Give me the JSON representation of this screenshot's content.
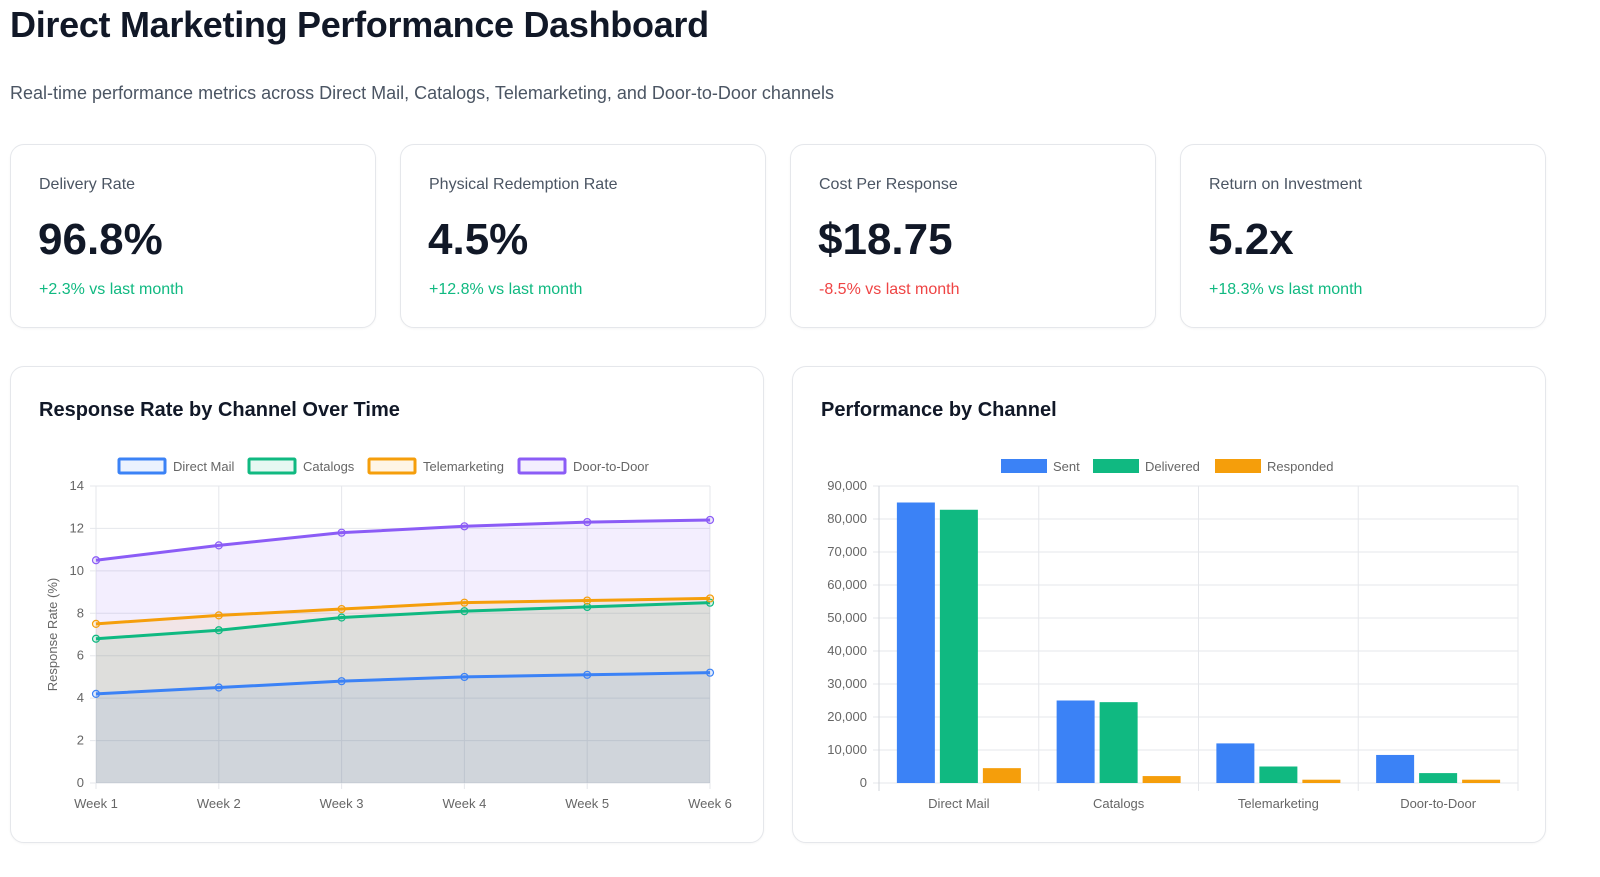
{
  "header": {
    "title": "Direct Marketing Performance Dashboard",
    "subtitle": "Real-time performance metrics across Direct Mail, Catalogs, Telemarketing, and Door-to-Door channels"
  },
  "kpis": [
    {
      "label": "Delivery Rate",
      "value": "96.8%",
      "change": "+2.3% vs last month",
      "trend": "positive"
    },
    {
      "label": "Physical Redemption Rate",
      "value": "4.5%",
      "change": "+12.8% vs last month",
      "trend": "positive"
    },
    {
      "label": "Cost Per Response",
      "value": "$18.75",
      "change": "-8.5% vs last month",
      "trend": "negative"
    },
    {
      "label": "Return on Investment",
      "value": "5.2x",
      "change": "+18.3% vs last month",
      "trend": "positive"
    }
  ],
  "colors": {
    "positive": "#10b981",
    "negative": "#ef4444",
    "blue": "#3b82f6",
    "green": "#10b981",
    "orange": "#f59e0b",
    "purple": "#8b5cf6"
  },
  "chart_data": [
    {
      "type": "area",
      "title": "Response Rate by Channel Over Time",
      "xlabel": "",
      "ylabel": "Response Rate (%)",
      "categories": [
        "Week 1",
        "Week 2",
        "Week 3",
        "Week 4",
        "Week 5",
        "Week 6"
      ],
      "ylim": [
        0,
        14
      ],
      "yticks": [
        0,
        2,
        4,
        6,
        8,
        10,
        12,
        14
      ],
      "grid": true,
      "legend": "top-center",
      "series": [
        {
          "name": "Direct Mail",
          "color": "#3b82f6",
          "values": [
            4.2,
            4.5,
            4.8,
            5.0,
            5.1,
            5.2
          ]
        },
        {
          "name": "Catalogs",
          "color": "#10b981",
          "values": [
            6.8,
            7.2,
            7.8,
            8.1,
            8.3,
            8.5
          ]
        },
        {
          "name": "Telemarketing",
          "color": "#f59e0b",
          "values": [
            7.5,
            7.9,
            8.2,
            8.5,
            8.6,
            8.7
          ]
        },
        {
          "name": "Door-to-Door",
          "color": "#8b5cf6",
          "values": [
            10.5,
            11.2,
            11.8,
            12.1,
            12.3,
            12.4
          ]
        }
      ]
    },
    {
      "type": "bar",
      "title": "Performance by Channel",
      "xlabel": "",
      "ylabel": "",
      "categories": [
        "Direct Mail",
        "Catalogs",
        "Telemarketing",
        "Door-to-Door"
      ],
      "ylim": [
        0,
        90000
      ],
      "yticks": [
        "0",
        "10,000",
        "20,000",
        "30,000",
        "40,000",
        "50,000",
        "60,000",
        "70,000",
        "80,000",
        "90,000"
      ],
      "grid": true,
      "legend": "top-center",
      "series": [
        {
          "name": "Sent",
          "color": "#3b82f6",
          "values": [
            85000,
            25000,
            12000,
            8500
          ]
        },
        {
          "name": "Delivered",
          "color": "#10b981",
          "values": [
            82800,
            24500,
            5000,
            3000
          ]
        },
        {
          "name": "Responded",
          "color": "#f59e0b",
          "values": [
            4500,
            2100,
            1000,
            1000
          ]
        }
      ]
    }
  ]
}
